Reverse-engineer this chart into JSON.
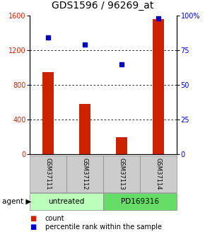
{
  "title": "GDS1596 / 96269_at",
  "samples": [
    "GSM37111",
    "GSM37112",
    "GSM37113",
    "GSM37114"
  ],
  "counts": [
    950,
    580,
    200,
    1560
  ],
  "percentiles": [
    84,
    79,
    65,
    98
  ],
  "bar_color": "#cc2200",
  "dot_color": "#0000cc",
  "left_ylim": [
    0,
    1600
  ],
  "right_ylim": [
    0,
    100
  ],
  "left_yticks": [
    0,
    400,
    800,
    1200,
    1600
  ],
  "right_yticks": [
    0,
    25,
    50,
    75,
    100
  ],
  "right_yticklabels": [
    "0",
    "25",
    "50",
    "75",
    "100%"
  ],
  "agents": [
    "untreated",
    "untreated",
    "PD169316",
    "PD169316"
  ],
  "agent_label": "agent",
  "agent_colors": {
    "untreated": "#bbffbb",
    "PD169316": "#66dd66"
  },
  "legend_count_label": "count",
  "legend_pct_label": "percentile rank within the sample",
  "cell_bg": "#cccccc",
  "title_fontsize": 10,
  "tick_fontsize": 7,
  "legend_fontsize": 7,
  "agent_fontsize": 7.5,
  "sample_fontsize": 6
}
